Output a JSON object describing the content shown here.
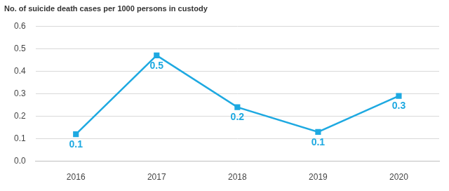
{
  "chart_data": {
    "type": "line",
    "y_label": "No. of suicide death cases per 1000 persons in custody",
    "categories": [
      "2016",
      "2017",
      "2018",
      "2019",
      "2020"
    ],
    "values": [
      0.12,
      0.47,
      0.24,
      0.13,
      0.29
    ],
    "value_labels": [
      "0.1",
      "0.5",
      "0.2",
      "0.1",
      "0.3"
    ],
    "color": "#1ea9e1",
    "marker": "square",
    "line_style": "solid",
    "data_labels": true,
    "ylim": [
      0,
      0.6
    ],
    "yticks": [
      {
        "value": 0,
        "label": "0.0"
      },
      0.1,
      0.2,
      0.3,
      0.4,
      0.5,
      0.6
    ],
    "grid": true
  }
}
